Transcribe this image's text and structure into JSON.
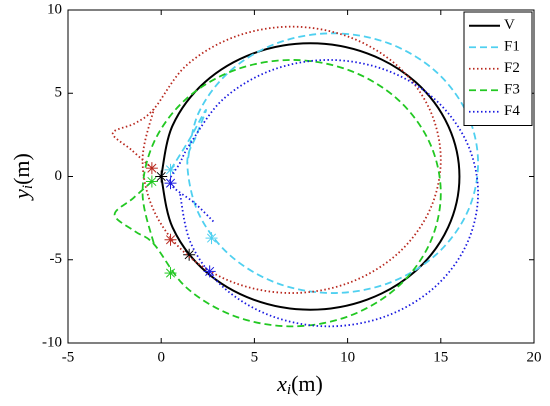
{
  "chart_data": {
    "type": "line",
    "xlabel": {
      "var": "x",
      "sub": "i",
      "unit": "(m)"
    },
    "ylabel": {
      "var": "y",
      "sub": "i",
      "unit": "(m)"
    },
    "xlim": [
      -5,
      20
    ],
    "ylim": [
      -10,
      10
    ],
    "xticks": [
      -5,
      0,
      5,
      10,
      15,
      20
    ],
    "yticks": [
      -10,
      -5,
      0,
      5,
      10
    ],
    "legend": "top-right",
    "series": [
      {
        "name": "V",
        "color": "#000000",
        "dash": "solid",
        "x": [
          0,
          0.61,
          2.34,
          4.94,
          8,
          11.06,
          13.66,
          15.39,
          16,
          15.39,
          13.66,
          11.06,
          8,
          4.94,
          2.34,
          0.61,
          0
        ],
        "y": [
          0,
          -3.06,
          -5.66,
          -7.39,
          -8,
          -7.39,
          -5.66,
          -3.06,
          0,
          3.06,
          5.66,
          7.39,
          8,
          7.39,
          5.66,
          3.06,
          0
        ],
        "markers_x": [
          0,
          1.5
        ],
        "markers_y": [
          0,
          -4.7
        ]
      },
      {
        "name": "F1",
        "color": "#4fd0f0",
        "dash": "dashed",
        "x": [
          0.5,
          1.5,
          2.4,
          1.9,
          1.4,
          1.99,
          3.68,
          6.22,
          9.2,
          12.18,
          14.72,
          16.41,
          17,
          16.41,
          14.72,
          12.18,
          9.2,
          6.22,
          3.68,
          1.99,
          1.4
        ],
        "y": [
          0.4,
          2.2,
          4.0,
          2.5,
          0.8,
          -2.18,
          -4.72,
          -6.41,
          -7,
          -6.41,
          -4.72,
          -2.18,
          0.8,
          3.78,
          6.32,
          8.01,
          8.6,
          8.01,
          6.32,
          3.78,
          0.8
        ],
        "markers_x": [
          0.5,
          2.7
        ],
        "markers_y": [
          0.4,
          -3.7
        ]
      },
      {
        "name": "F2",
        "color": "#b8281e",
        "dash": "dotted",
        "x": [
          -0.5,
          -1.6,
          -2.6,
          -1.4,
          -0.39,
          1.34,
          3.94,
          7,
          10.06,
          12.66,
          14.39,
          15,
          14.39,
          12.66,
          10.06,
          7,
          3.94,
          1.34,
          -0.39,
          -1,
          -0.39
        ],
        "y": [
          0.5,
          1.6,
          2.6,
          3.2,
          4.06,
          6.66,
          8.39,
          9,
          8.39,
          6.66,
          4.06,
          1,
          -2.06,
          -4.66,
          -6.39,
          -7,
          -6.39,
          -4.66,
          -2.06,
          1,
          4.06
        ],
        "markers_x": [
          -0.5,
          0.5
        ],
        "markers_y": [
          0.5,
          -3.8
        ]
      },
      {
        "name": "F3",
        "color": "#22c822",
        "dash": "dashed",
        "x": [
          -0.5,
          -1.5,
          -2.5,
          -1.4,
          -0.39,
          1.34,
          3.94,
          7,
          10.06,
          12.66,
          14.39,
          15,
          14.39,
          12.66,
          10.06,
          7,
          3.94,
          1.34,
          -0.39,
          -1,
          -0.39
        ],
        "y": [
          -0.3,
          -1.3,
          -2.3,
          -3.3,
          -4.06,
          -6.66,
          -8.39,
          -9,
          -8.39,
          -6.66,
          -4.06,
          -1,
          2.06,
          4.66,
          6.39,
          7,
          6.39,
          4.66,
          2.06,
          -1,
          -4.06
        ],
        "markers_x": [
          -0.5,
          0.5
        ],
        "markers_y": [
          -0.3,
          -5.8
        ]
      },
      {
        "name": "F4",
        "color": "#1a1ae0",
        "dash": "dotted",
        "x": [
          2.8,
          1.8,
          0.5,
          1.0,
          1.61,
          3.34,
          5.94,
          9,
          12.06,
          14.66,
          16.39,
          17,
          16.39,
          14.66,
          12.06,
          9,
          5.94,
          3.34,
          1.61,
          1
        ],
        "y": [
          -2.7,
          -1.6,
          -0.4,
          0.8,
          2.06,
          4.66,
          6.39,
          7,
          6.39,
          4.66,
          2.06,
          -1,
          -4.06,
          -6.66,
          -8.39,
          -9,
          -8.39,
          -6.66,
          -4.06,
          -1
        ],
        "markers_x": [
          0.5,
          2.6
        ],
        "markers_y": [
          -0.4,
          -5.7
        ]
      }
    ]
  }
}
